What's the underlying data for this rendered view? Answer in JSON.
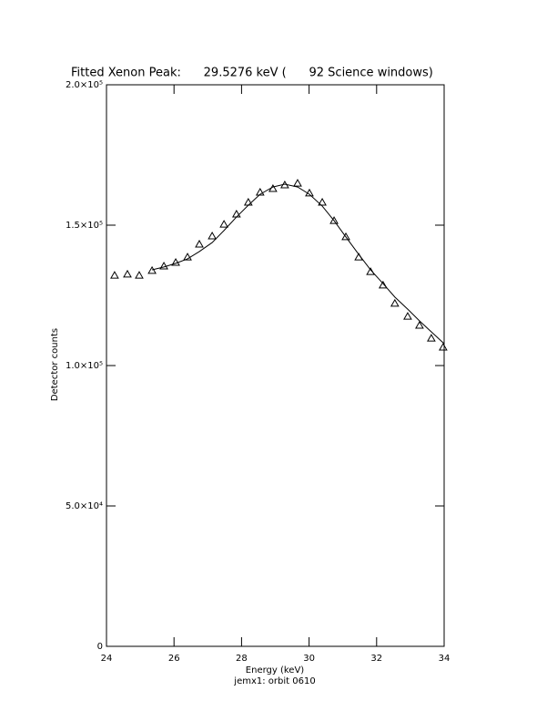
{
  "chart_data": {
    "type": "scatter",
    "title": "Fitted Xenon Peak:      29.5276 keV (      92 Science windows)",
    "x_label": "Energy (keV)",
    "y_label": "Detector counts",
    "footer": "jemx1: orbit 0610",
    "xlim": [
      24,
      34
    ],
    "ylim": [
      0,
      200000
    ],
    "xticks": [
      24,
      26,
      28,
      30,
      32,
      34
    ],
    "yticks": [
      0,
      {
        "value": 50000,
        "label": "5.0×10⁴"
      },
      {
        "value": 100000,
        "label": "1.0×10⁵"
      },
      {
        "value": 150000,
        "label": "1.5×10⁵"
      },
      {
        "value": 200000,
        "label": "2.0×10⁵"
      }
    ],
    "color": "#000000",
    "series": [
      {
        "marker": "triangle",
        "x": [
          24.24,
          24.62,
          24.97,
          25.35,
          25.7,
          26.05,
          26.4,
          26.75,
          27.13,
          27.48,
          27.85,
          28.2,
          28.55,
          28.93,
          29.28,
          29.66,
          30.01,
          30.39,
          30.74,
          31.09,
          31.47,
          31.82,
          32.19,
          32.54,
          32.92,
          33.27,
          33.62,
          33.97
        ],
        "values": [
          132100,
          132500,
          132100,
          133800,
          135400,
          136700,
          138600,
          143200,
          146100,
          150300,
          153900,
          158100,
          161700,
          163000,
          164300,
          164900,
          161400,
          158100,
          151600,
          145800,
          138600,
          133400,
          128600,
          122100,
          117500,
          114300,
          109700,
          106500
        ]
      },
      {
        "marker": "line",
        "x": [
          25.35,
          25.7,
          26.05,
          26.4,
          26.75,
          27.13,
          27.48,
          27.85,
          28.2,
          28.55,
          28.93,
          29.28,
          29.66,
          30.01,
          30.39,
          30.74,
          31.09,
          31.47,
          31.82,
          32.19,
          32.54,
          32.92,
          33.27,
          33.62,
          34.0
        ],
        "values": [
          134100,
          135100,
          136400,
          138000,
          140600,
          143800,
          148100,
          152900,
          157100,
          161000,
          163600,
          164600,
          163600,
          161000,
          156800,
          151600,
          145800,
          139600,
          134100,
          129200,
          124400,
          120100,
          115900,
          112000,
          107800
        ]
      }
    ]
  }
}
